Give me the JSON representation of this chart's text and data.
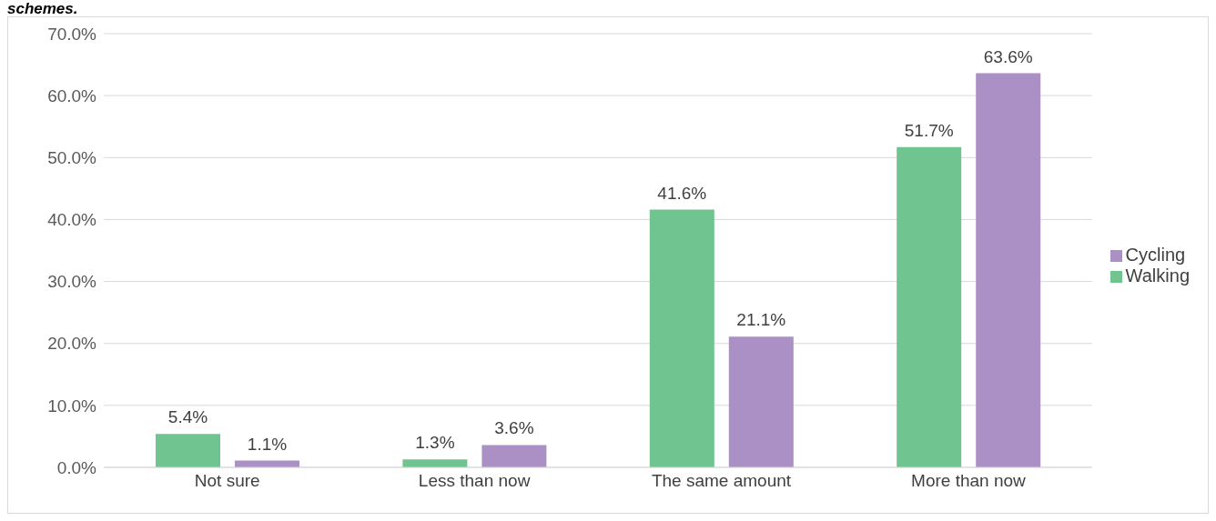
{
  "chart_data": {
    "type": "bar",
    "title": "schemes.",
    "categories": [
      "Not sure",
      "Less than now",
      "The same amount",
      "More than now"
    ],
    "series": [
      {
        "name": "Walking",
        "color": "#70c48f",
        "values": [
          5.4,
          1.3,
          41.6,
          51.7
        ],
        "value_labels": [
          "5.4%",
          "1.3%",
          "41.6%",
          "51.7%"
        ]
      },
      {
        "name": "Cycling",
        "color": "#ab90c6",
        "values": [
          1.1,
          3.6,
          21.1,
          63.6
        ],
        "value_labels": [
          "1.1%",
          "3.6%",
          "21.1%",
          "63.6%"
        ]
      }
    ],
    "ylim": [
      0,
      70
    ],
    "yticks": [
      {
        "value": 0,
        "label": "0.0%"
      },
      {
        "value": 10,
        "label": "10.0%"
      },
      {
        "value": 20,
        "label": "20.0%"
      },
      {
        "value": 30,
        "label": "30.0%"
      },
      {
        "value": 40,
        "label": "40.0%"
      },
      {
        "value": 50,
        "label": "50.0%"
      },
      {
        "value": 60,
        "label": "60.0%"
      },
      {
        "value": 70,
        "label": "70.0%"
      }
    ],
    "grid": "y",
    "legend": "right"
  }
}
